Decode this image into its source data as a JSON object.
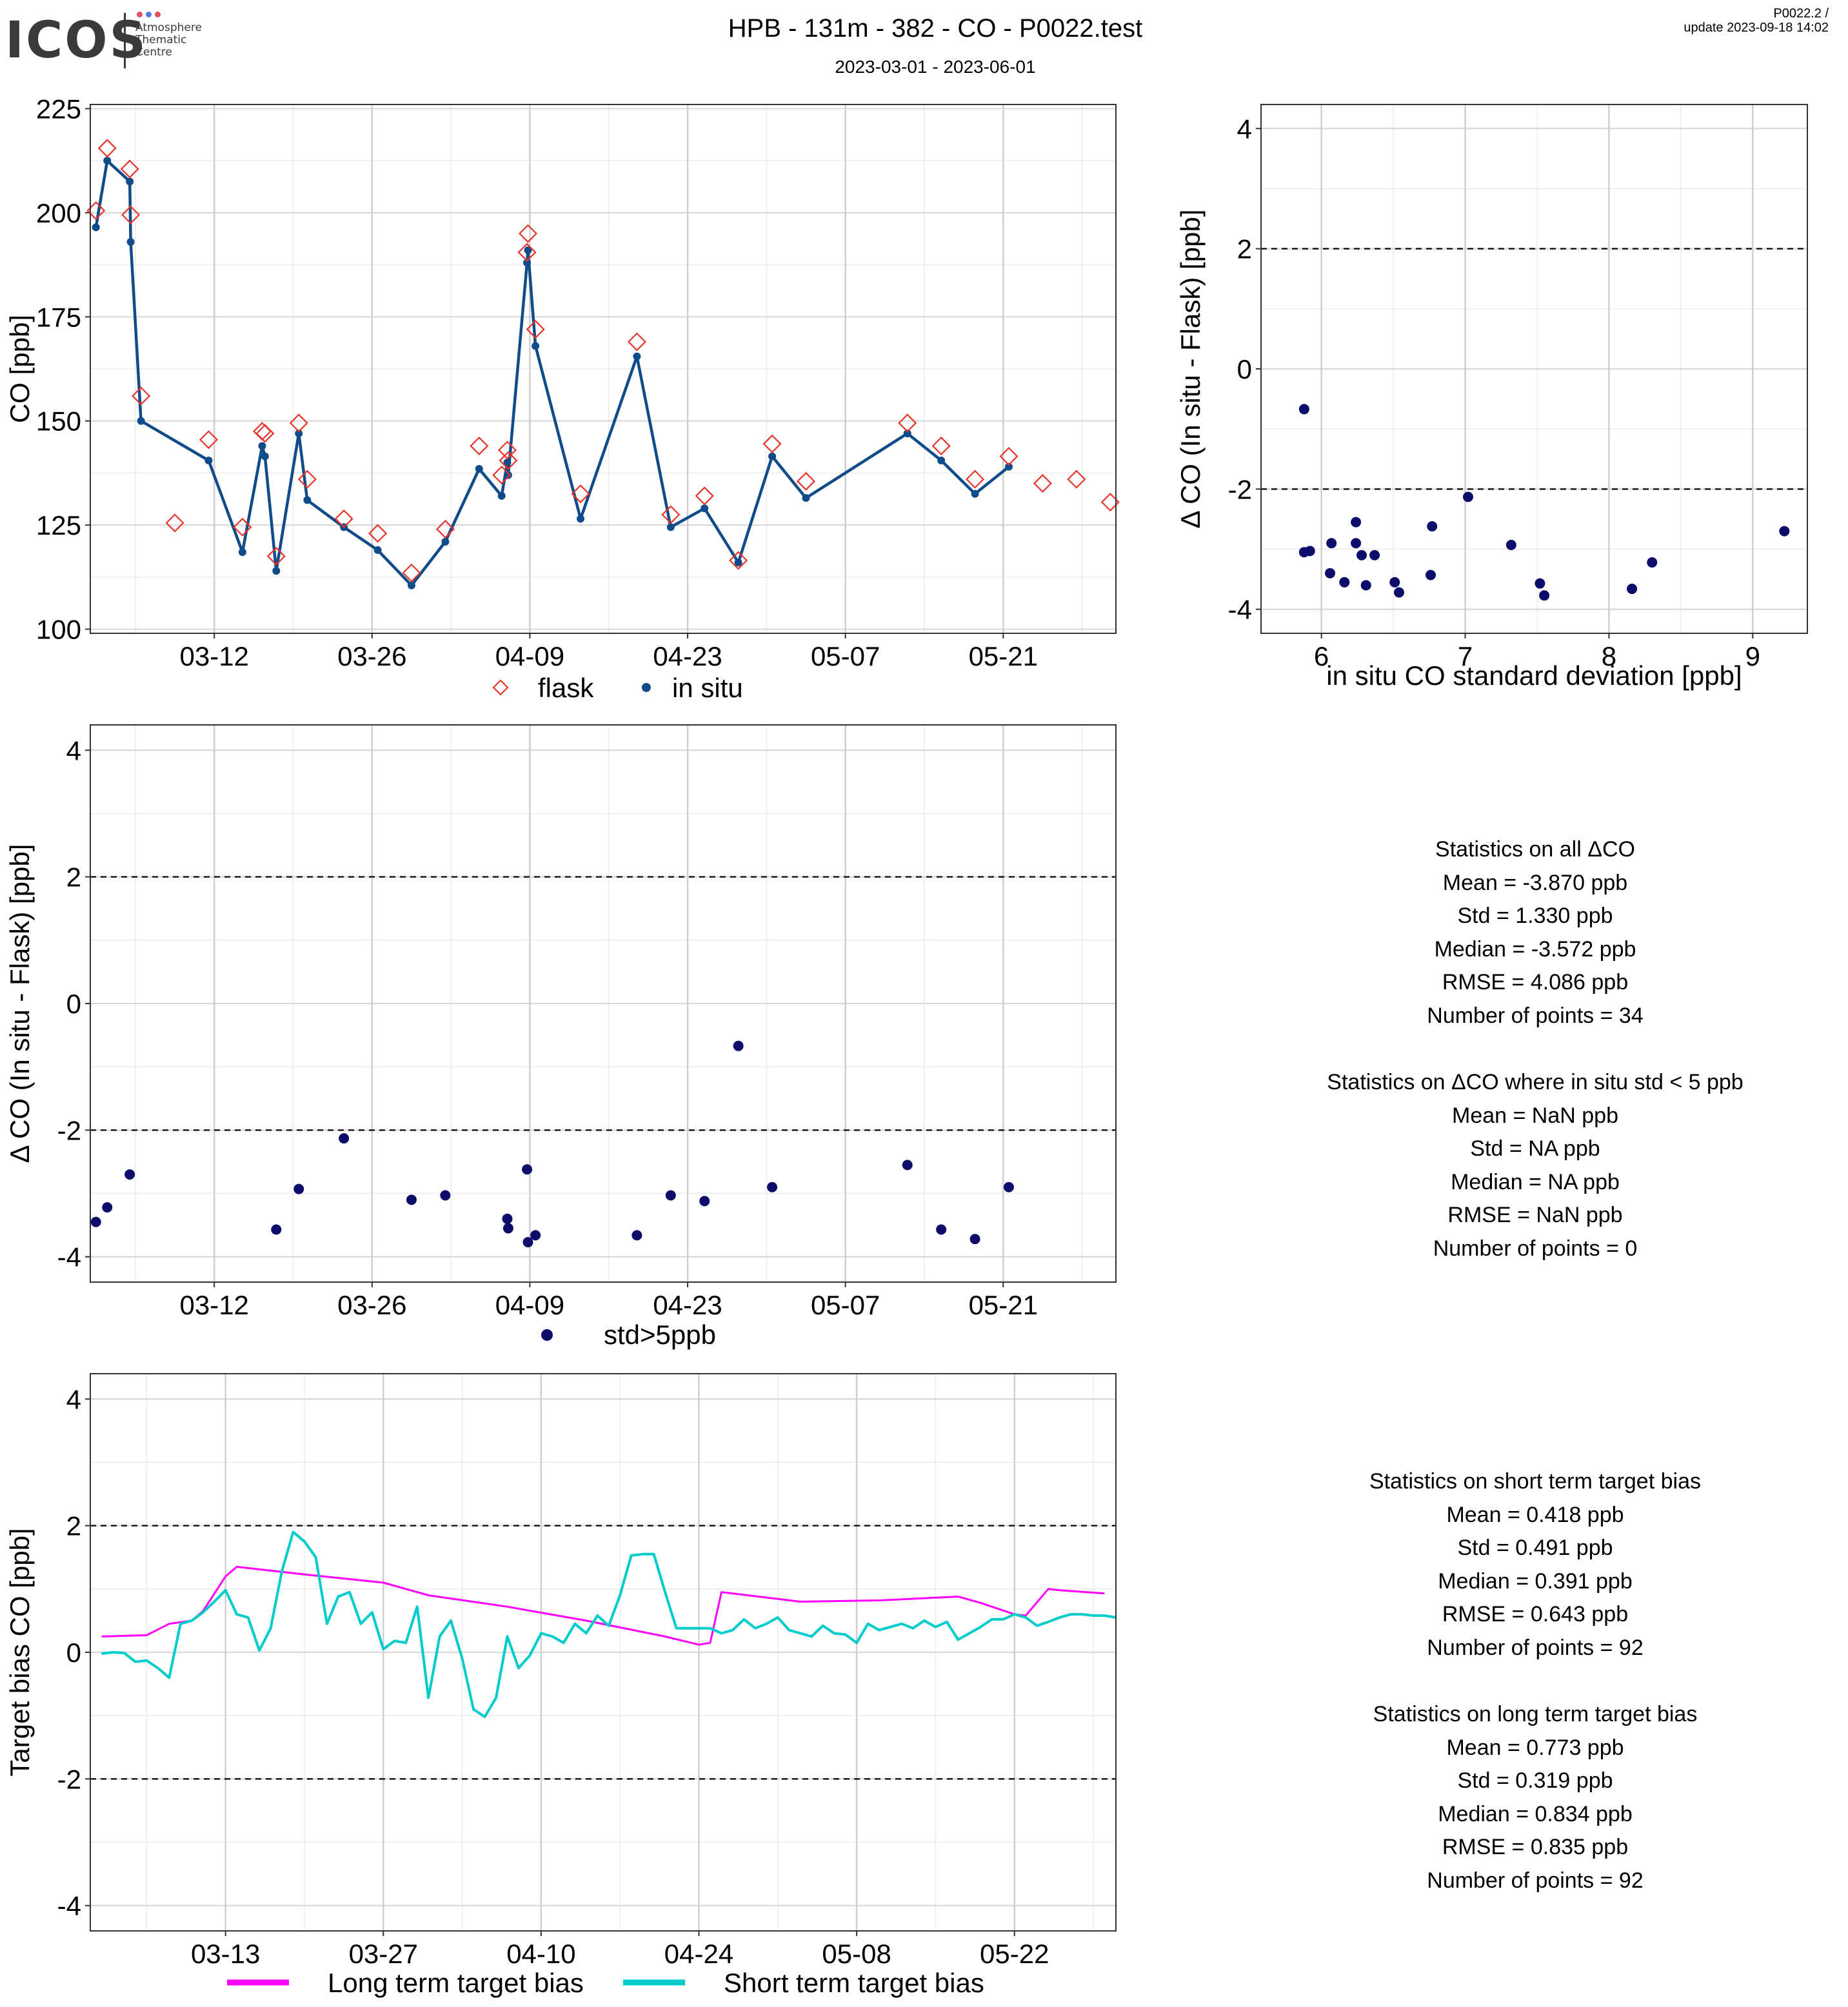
{
  "header": {
    "logo_text": "ICOS",
    "logo_sub": [
      "Atmosphere",
      "Thematic",
      "Centre"
    ],
    "logo_dot_colors": [
      "#e3515d",
      "#4f7fe0",
      "#e3515d"
    ],
    "title": "HPB - 131m - 382 - CO - P0022.test",
    "date_range": "2023-03-01 - 2023-06-01",
    "version": "P0022.2 /",
    "update": "update  2023-09-18 14:02"
  },
  "colors": {
    "flask": "#e8342b",
    "insitu": "#104c8a",
    "delta_points": "#0c0c6b",
    "long_term": "#ff00ff",
    "short_term": "#00cccc"
  },
  "stats_delta": {
    "all_title": "Statistics on all ΔCO",
    "all_lines": [
      "Mean =  -3.870 ppb",
      "Std =  1.330 ppb",
      "Median =  -3.572 ppb",
      "RMSE =  4.086 ppb",
      "Number of points =  34"
    ],
    "filtered_title": "Statistics on ΔCO where in situ std < 5 ppb",
    "filtered_lines": [
      "Mean =  NaN ppb",
      "Std =  NA ppb",
      "Median =  NA ppb",
      "RMSE =  NaN ppb",
      "Number of points =  0"
    ]
  },
  "stats_bias": {
    "short_title": "Statistics on short term target bias",
    "short_lines": [
      "Mean =  0.418 ppb",
      "Std =  0.491 ppb",
      "Median =  0.391 ppb",
      "RMSE =  0.643 ppb",
      "Number of points =  92"
    ],
    "long_title": "Statistics on long term target bias",
    "long_lines": [
      "Mean =  0.773 ppb",
      "Std =  0.319 ppb",
      "Median =  0.834 ppb",
      "RMSE =  0.835 ppb",
      "Number of points =  92"
    ]
  },
  "chart_data": [
    {
      "type": "line",
      "ylabel": "CO [ppb]",
      "xlim": [
        "2023-03-01",
        "2023-05-31"
      ],
      "ylim": [
        99,
        226
      ],
      "yticks": [
        100,
        125,
        150,
        175,
        200,
        225
      ],
      "xticks": [
        "03-12",
        "03-26",
        "04-09",
        "04-23",
        "05-07",
        "05-21"
      ],
      "legend": [
        "flask",
        "in situ"
      ],
      "flask": [
        [
          "2023-03-01 12:00",
          200.5
        ],
        [
          "2023-03-02 12:00",
          215.5
        ],
        [
          "2023-03-04 12:00",
          210.5
        ],
        [
          "2023-03-04 14:00",
          199.5
        ],
        [
          "2023-03-05 12:00",
          156
        ],
        [
          "2023-03-08 12:00",
          125.5
        ],
        [
          "2023-03-11 12:00",
          145.5
        ],
        [
          "2023-03-14 12:00",
          124.5
        ],
        [
          "2023-03-16 06:00",
          147.5
        ],
        [
          "2023-03-16 12:00",
          147
        ],
        [
          "2023-03-17 12:00",
          117.5
        ],
        [
          "2023-03-19 12:00",
          149.5
        ],
        [
          "2023-03-20 06:00",
          136
        ],
        [
          "2023-03-23 12:00",
          126.5
        ],
        [
          "2023-03-26 12:00",
          123
        ],
        [
          "2023-03-29 12:00",
          113.5
        ],
        [
          "2023-04-01 12:00",
          124
        ],
        [
          "2023-04-04 12:00",
          144
        ],
        [
          "2023-04-06 12:00",
          137
        ],
        [
          "2023-04-07 00:00",
          143
        ],
        [
          "2023-04-07 02:00",
          140.5
        ],
        [
          "2023-04-08 18:00",
          190.5
        ],
        [
          "2023-04-08 20:00",
          195
        ],
        [
          "2023-04-09 12:00",
          172
        ],
        [
          "2023-04-13 12:00",
          132.5
        ],
        [
          "2023-04-18 12:00",
          169
        ],
        [
          "2023-04-21 12:00",
          127.5
        ],
        [
          "2023-04-24 12:00",
          132
        ],
        [
          "2023-04-27 12:00",
          116.5
        ],
        [
          "2023-04-30 12:00",
          144.5
        ],
        [
          "2023-05-03 12:00",
          135.5
        ],
        [
          "2023-05-12 12:00",
          149.5
        ],
        [
          "2023-05-15 12:00",
          144
        ],
        [
          "2023-05-18 12:00",
          136
        ],
        [
          "2023-05-21 12:00",
          141.5
        ],
        [
          "2023-05-24 12:00",
          135
        ],
        [
          "2023-05-27 12:00",
          136
        ],
        [
          "2023-05-30 12:00",
          130.5
        ]
      ],
      "insitu": [
        [
          "2023-03-01 12:00",
          196.5
        ],
        [
          "2023-03-02 12:00",
          212.5
        ],
        [
          "2023-03-04 12:00",
          207.5
        ],
        [
          "2023-03-04 14:00",
          193
        ],
        [
          "2023-03-05 12:00",
          150
        ],
        [
          "2023-03-11 12:00",
          140.5
        ],
        [
          "2023-03-14 12:00",
          118.5
        ],
        [
          "2023-03-16 06:00",
          144
        ],
        [
          "2023-03-16 12:00",
          141.5
        ],
        [
          "2023-03-17 12:00",
          114
        ],
        [
          "2023-03-19 12:00",
          147
        ],
        [
          "2023-03-20 06:00",
          131
        ],
        [
          "2023-03-23 12:00",
          124.5
        ],
        [
          "2023-03-26 12:00",
          119
        ],
        [
          "2023-03-29 12:00",
          110.5
        ],
        [
          "2023-04-01 12:00",
          121
        ],
        [
          "2023-04-04 12:00",
          138.5
        ],
        [
          "2023-04-06 12:00",
          132
        ],
        [
          "2023-04-07 00:00",
          140
        ],
        [
          "2023-04-07 02:00",
          137
        ],
        [
          "2023-04-08 18:00",
          188
        ],
        [
          "2023-04-08 20:00",
          191
        ],
        [
          "2023-04-09 12:00",
          168
        ],
        [
          "2023-04-13 12:00",
          126.5
        ],
        [
          "2023-04-18 12:00",
          165.5
        ],
        [
          "2023-04-21 12:00",
          124.5
        ],
        [
          "2023-04-24 12:00",
          129
        ],
        [
          "2023-04-27 12:00",
          116
        ],
        [
          "2023-04-30 12:00",
          141.5
        ],
        [
          "2023-05-03 12:00",
          131.5
        ],
        [
          "2023-05-12 12:00",
          147
        ],
        [
          "2023-05-15 12:00",
          140.5
        ],
        [
          "2023-05-18 12:00",
          132.5
        ],
        [
          "2023-05-21 12:00",
          139
        ]
      ]
    },
    {
      "type": "scatter",
      "xlabel": "in situ CO standard deviation [ppb]",
      "ylabel": "Δ CO (In situ - Flask) [ppb]",
      "xlim": [
        5.58,
        9.38
      ],
      "ylim": [
        -4.4,
        4.4
      ],
      "xticks": [
        6,
        7,
        8,
        9
      ],
      "yticks": [
        -4,
        -2,
        0,
        2,
        4
      ],
      "hlines": [
        -2,
        2
      ],
      "points": [
        [
          5.88,
          -0.67
        ],
        [
          5.88,
          -3.05
        ],
        [
          5.92,
          -3.03
        ],
        [
          6.06,
          -3.4
        ],
        [
          6.07,
          -2.9
        ],
        [
          6.16,
          -3.55
        ],
        [
          6.24,
          -2.55
        ],
        [
          6.24,
          -2.9
        ],
        [
          6.28,
          -3.1
        ],
        [
          6.31,
          -3.6
        ],
        [
          6.37,
          -3.1
        ],
        [
          6.51,
          -3.55
        ],
        [
          6.54,
          -3.72
        ],
        [
          6.76,
          -3.43
        ],
        [
          6.77,
          -2.62
        ],
        [
          7.02,
          -2.13
        ],
        [
          7.32,
          -2.93
        ],
        [
          7.52,
          -3.57
        ],
        [
          7.55,
          -3.77
        ],
        [
          8.16,
          -3.66
        ],
        [
          8.3,
          -3.22
        ],
        [
          9.22,
          -2.7
        ]
      ]
    },
    {
      "type": "scatter",
      "ylabel": "Δ CO (In situ - Flask) [ppb]",
      "xlim": [
        "2023-03-01",
        "2023-05-31"
      ],
      "ylim": [
        -4.4,
        4.4
      ],
      "yticks": [
        -4,
        -2,
        0,
        2,
        4
      ],
      "xticks": [
        "03-12",
        "03-26",
        "04-09",
        "04-23",
        "05-07",
        "05-21"
      ],
      "hlines": [
        -2,
        2
      ],
      "legend": [
        "std>5ppb"
      ],
      "points": [
        [
          "2023-03-01 12:00",
          -3.45
        ],
        [
          "2023-03-02 12:00",
          -3.22
        ],
        [
          "2023-03-04 12:00",
          -2.7
        ],
        [
          "2023-03-17 12:00",
          -3.57
        ],
        [
          "2023-03-19 12:00",
          -2.93
        ],
        [
          "2023-03-23 12:00",
          -2.13
        ],
        [
          "2023-03-29 12:00",
          -3.1
        ],
        [
          "2023-04-01 12:00",
          -3.03
        ],
        [
          "2023-04-07 00:00",
          -3.4
        ],
        [
          "2023-04-07 02:00",
          -3.55
        ],
        [
          "2023-04-08 18:00",
          -2.62
        ],
        [
          "2023-04-08 20:00",
          -3.77
        ],
        [
          "2023-04-09 12:00",
          -3.66
        ],
        [
          "2023-04-18 12:00",
          -3.66
        ],
        [
          "2023-04-21 12:00",
          -3.03
        ],
        [
          "2023-04-24 12:00",
          -3.12
        ],
        [
          "2023-04-27 12:00",
          -0.67
        ],
        [
          "2023-04-30 12:00",
          -2.9
        ],
        [
          "2023-05-12 12:00",
          -2.55
        ],
        [
          "2023-05-15 12:00",
          -3.57
        ],
        [
          "2023-05-18 12:00",
          -3.72
        ],
        [
          "2023-05-21 12:00",
          -2.9
        ]
      ]
    },
    {
      "type": "line",
      "ylabel": "Target bias CO [ppb]",
      "xlim": [
        "2023-03-01",
        "2023-05-31"
      ],
      "ylim": [
        -4.4,
        4.4
      ],
      "yticks": [
        -4,
        -2,
        0,
        2,
        4
      ],
      "xticks": [
        "03-13",
        "03-27",
        "04-10",
        "04-24",
        "05-08",
        "05-22"
      ],
      "hlines": [
        -2,
        2
      ],
      "legend": [
        "Long term target bias",
        "Short term target bias"
      ],
      "long_term": [
        [
          "2023-03-02",
          0.25
        ],
        [
          "2023-03-06",
          0.27
        ],
        [
          "2023-03-08",
          0.45
        ],
        [
          "2023-03-10",
          0.5
        ],
        [
          "2023-03-11",
          0.65
        ],
        [
          "2023-03-13",
          1.2
        ],
        [
          "2023-03-14",
          1.35
        ],
        [
          "2023-03-20",
          1.23
        ],
        [
          "2023-03-27",
          1.1
        ],
        [
          "2023-03-31",
          0.9
        ],
        [
          "2023-04-07",
          0.72
        ],
        [
          "2023-04-14",
          0.5
        ],
        [
          "2023-04-21",
          0.25
        ],
        [
          "2023-04-24",
          0.12
        ],
        [
          "2023-04-25",
          0.15
        ],
        [
          "2023-04-26",
          0.95
        ],
        [
          "2023-05-03",
          0.8
        ],
        [
          "2023-05-10",
          0.82
        ],
        [
          "2023-05-17",
          0.88
        ],
        [
          "2023-05-19",
          0.78
        ],
        [
          "2023-05-22",
          0.6
        ],
        [
          "2023-05-23",
          0.58
        ],
        [
          "2023-05-25",
          1.0
        ],
        [
          "2023-05-26",
          0.98
        ],
        [
          "2023-05-30",
          0.93
        ]
      ],
      "short_term": [
        [
          "2023-03-02",
          -0.02
        ],
        [
          "2023-03-03",
          0.0
        ],
        [
          "2023-03-04",
          -0.01
        ],
        [
          "2023-03-05",
          -0.15
        ],
        [
          "2023-03-06",
          -0.13
        ],
        [
          "2023-03-07",
          -0.25
        ],
        [
          "2023-03-08",
          -0.4
        ],
        [
          "2023-03-09",
          0.45
        ],
        [
          "2023-03-10",
          0.5
        ],
        [
          "2023-03-11",
          0.63
        ],
        [
          "2023-03-12",
          0.8
        ],
        [
          "2023-03-13",
          0.98
        ],
        [
          "2023-03-14",
          0.6
        ],
        [
          "2023-03-15",
          0.55
        ],
        [
          "2023-03-16",
          0.03
        ],
        [
          "2023-03-17",
          0.38
        ],
        [
          "2023-03-18",
          1.28
        ],
        [
          "2023-03-19",
          1.9
        ],
        [
          "2023-03-20",
          1.75
        ],
        [
          "2023-03-21",
          1.5
        ],
        [
          "2023-03-22",
          0.45
        ],
        [
          "2023-03-23",
          0.88
        ],
        [
          "2023-03-24",
          0.95
        ],
        [
          "2023-03-25",
          0.45
        ],
        [
          "2023-03-26",
          0.63
        ],
        [
          "2023-03-27",
          0.05
        ],
        [
          "2023-03-28",
          0.18
        ],
        [
          "2023-03-29",
          0.15
        ],
        [
          "2023-03-30",
          0.72
        ],
        [
          "2023-03-31",
          -0.72
        ],
        [
          "2023-04-01",
          0.25
        ],
        [
          "2023-04-02",
          0.5
        ],
        [
          "2023-04-03",
          -0.1
        ],
        [
          "2023-04-04",
          -0.9
        ],
        [
          "2023-04-05",
          -1.02
        ],
        [
          "2023-04-06",
          -0.72
        ],
        [
          "2023-04-07",
          0.25
        ],
        [
          "2023-04-08",
          -0.25
        ],
        [
          "2023-04-09",
          -0.05
        ],
        [
          "2023-04-10",
          0.3
        ],
        [
          "2023-04-11",
          0.25
        ],
        [
          "2023-04-12",
          0.15
        ],
        [
          "2023-04-13",
          0.45
        ],
        [
          "2023-04-14",
          0.3
        ],
        [
          "2023-04-15",
          0.58
        ],
        [
          "2023-04-16",
          0.42
        ],
        [
          "2023-04-17",
          0.9
        ],
        [
          "2023-04-18",
          1.53
        ],
        [
          "2023-04-19",
          1.55
        ],
        [
          "2023-04-20",
          1.55
        ],
        [
          "2023-04-21",
          0.95
        ],
        [
          "2023-04-22",
          0.38
        ],
        [
          "2023-04-23",
          0.38
        ],
        [
          "2023-04-24",
          0.38
        ],
        [
          "2023-04-25",
          0.38
        ],
        [
          "2023-04-26",
          0.3
        ],
        [
          "2023-04-27",
          0.35
        ],
        [
          "2023-04-28",
          0.52
        ],
        [
          "2023-04-29",
          0.38
        ],
        [
          "2023-04-30",
          0.45
        ],
        [
          "2023-05-01",
          0.55
        ],
        [
          "2023-05-02",
          0.35
        ],
        [
          "2023-05-03",
          0.3
        ],
        [
          "2023-05-04",
          0.25
        ],
        [
          "2023-05-05",
          0.42
        ],
        [
          "2023-05-06",
          0.3
        ],
        [
          "2023-05-07",
          0.28
        ],
        [
          "2023-05-08",
          0.15
        ],
        [
          "2023-05-09",
          0.45
        ],
        [
          "2023-05-10",
          0.35
        ],
        [
          "2023-05-11",
          0.4
        ],
        [
          "2023-05-12",
          0.45
        ],
        [
          "2023-05-13",
          0.38
        ],
        [
          "2023-05-14",
          0.5
        ],
        [
          "2023-05-15",
          0.4
        ],
        [
          "2023-05-16",
          0.48
        ],
        [
          "2023-05-17",
          0.2
        ],
        [
          "2023-05-18",
          0.3
        ],
        [
          "2023-05-19",
          0.4
        ],
        [
          "2023-05-20",
          0.52
        ],
        [
          "2023-05-21",
          0.52
        ],
        [
          "2023-05-22",
          0.6
        ],
        [
          "2023-05-23",
          0.55
        ],
        [
          "2023-05-24",
          0.42
        ],
        [
          "2023-05-25",
          0.48
        ],
        [
          "2023-05-26",
          0.55
        ],
        [
          "2023-05-27",
          0.6
        ],
        [
          "2023-05-28",
          0.6
        ],
        [
          "2023-05-29",
          0.58
        ],
        [
          "2023-05-30",
          0.58
        ],
        [
          "2023-05-31",
          0.55
        ]
      ]
    }
  ]
}
